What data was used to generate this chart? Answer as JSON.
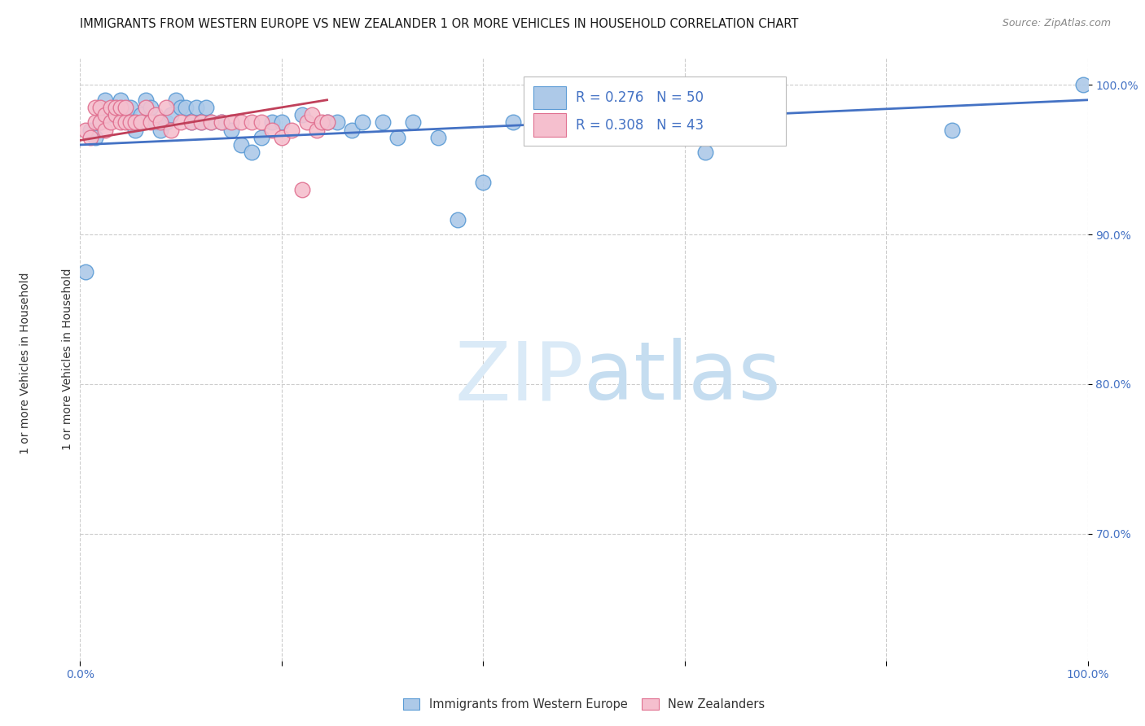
{
  "title": "IMMIGRANTS FROM WESTERN EUROPE VS NEW ZEALANDER 1 OR MORE VEHICLES IN HOUSEHOLD CORRELATION CHART",
  "source": "Source: ZipAtlas.com",
  "ylabel": "1 or more Vehicles in Household",
  "xlim": [
    0.0,
    1.0
  ],
  "ylim": [
    0.615,
    1.018
  ],
  "xtick_labels": [
    "0.0%",
    "",
    "",
    "",
    "",
    "",
    "",
    "",
    "",
    "",
    "100.0%"
  ],
  "xtick_vals": [
    0.0,
    0.1,
    0.2,
    0.3,
    0.4,
    0.5,
    0.6,
    0.7,
    0.8,
    0.9,
    1.0
  ],
  "ytick_labels": [
    "70.0%",
    "80.0%",
    "90.0%",
    "100.0%"
  ],
  "ytick_vals": [
    0.7,
    0.8,
    0.9,
    1.0
  ],
  "grid_color": "#cccccc",
  "blue_color": "#adc9e8",
  "pink_color": "#f5bfce",
  "blue_edge_color": "#5b9bd5",
  "pink_edge_color": "#e07090",
  "blue_line_color": "#4472c4",
  "pink_line_color": "#c0405a",
  "R_blue": 0.276,
  "N_blue": 50,
  "R_pink": 0.308,
  "N_pink": 43,
  "legend_label_blue": "Immigrants from Western Europe",
  "legend_label_pink": "New Zealanders",
  "blue_scatter_x": [
    0.005,
    0.01,
    0.015,
    0.02,
    0.025,
    0.025,
    0.03,
    0.035,
    0.04,
    0.045,
    0.05,
    0.055,
    0.06,
    0.065,
    0.07,
    0.075,
    0.08,
    0.085,
    0.09,
    0.095,
    0.1,
    0.105,
    0.11,
    0.115,
    0.12,
    0.125,
    0.13,
    0.14,
    0.15,
    0.16,
    0.17,
    0.18,
    0.19,
    0.2,
    0.22,
    0.245,
    0.255,
    0.27,
    0.28,
    0.3,
    0.315,
    0.33,
    0.355,
    0.375,
    0.4,
    0.43,
    0.46,
    0.62,
    0.865,
    0.995
  ],
  "blue_scatter_y": [
    0.875,
    0.97,
    0.965,
    0.975,
    0.98,
    0.99,
    0.98,
    0.985,
    0.99,
    0.98,
    0.985,
    0.97,
    0.98,
    0.99,
    0.985,
    0.975,
    0.97,
    0.975,
    0.98,
    0.99,
    0.985,
    0.985,
    0.975,
    0.985,
    0.975,
    0.985,
    0.975,
    0.975,
    0.97,
    0.96,
    0.955,
    0.965,
    0.975,
    0.975,
    0.98,
    0.975,
    0.975,
    0.97,
    0.975,
    0.975,
    0.965,
    0.975,
    0.965,
    0.91,
    0.935,
    0.975,
    0.975,
    0.955,
    0.97,
    1.0
  ],
  "pink_scatter_x": [
    0.005,
    0.01,
    0.015,
    0.015,
    0.02,
    0.02,
    0.025,
    0.025,
    0.03,
    0.03,
    0.035,
    0.035,
    0.04,
    0.04,
    0.045,
    0.045,
    0.05,
    0.055,
    0.06,
    0.065,
    0.07,
    0.075,
    0.08,
    0.085,
    0.09,
    0.1,
    0.11,
    0.12,
    0.13,
    0.14,
    0.15,
    0.16,
    0.17,
    0.18,
    0.19,
    0.2,
    0.21,
    0.22,
    0.225,
    0.23,
    0.235,
    0.24,
    0.245
  ],
  "pink_scatter_y": [
    0.97,
    0.965,
    0.975,
    0.985,
    0.975,
    0.985,
    0.97,
    0.98,
    0.975,
    0.985,
    0.98,
    0.985,
    0.975,
    0.985,
    0.975,
    0.985,
    0.975,
    0.975,
    0.975,
    0.985,
    0.975,
    0.98,
    0.975,
    0.985,
    0.97,
    0.975,
    0.975,
    0.975,
    0.975,
    0.975,
    0.975,
    0.975,
    0.975,
    0.975,
    0.97,
    0.965,
    0.97,
    0.93,
    0.975,
    0.98,
    0.97,
    0.975,
    0.975
  ],
  "blue_line_x_start": 0.0,
  "blue_line_x_end": 1.0,
  "blue_line_y_start": 0.96,
  "blue_line_y_end": 0.99,
  "pink_line_x_start": 0.0,
  "pink_line_x_end": 0.245,
  "pink_line_y_start": 0.963,
  "pink_line_y_end": 0.99
}
